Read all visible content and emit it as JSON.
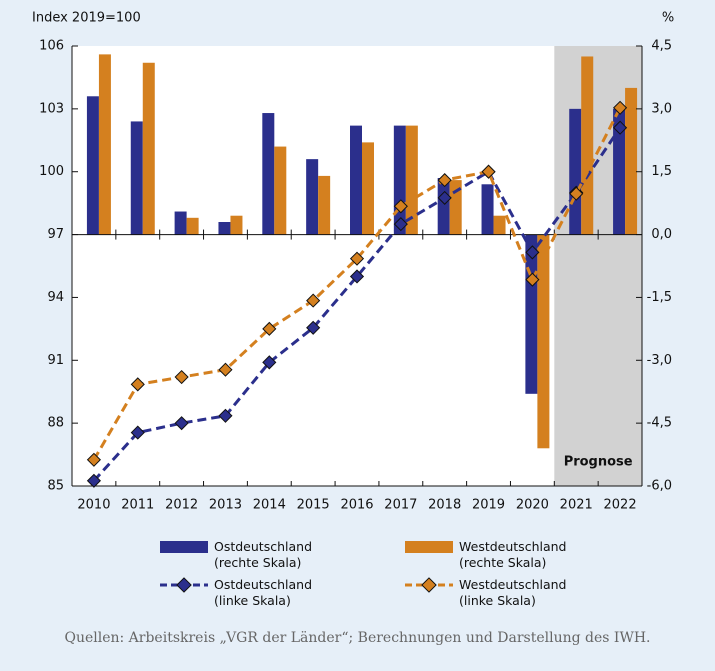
{
  "chart_data": {
    "type": "bar",
    "y_label": "Index 2019=100",
    "y2_label": "%",
    "annotation": "Prognose",
    "source": "Quellen: Arbeitskreis „VGR der Länder“; Berechnungen und Darstellung des IWH.",
    "categories": [
      "2010",
      "2011",
      "2012",
      "2013",
      "2014",
      "2015",
      "2016",
      "2017",
      "2018",
      "2019",
      "2020",
      "2021",
      "2022"
    ],
    "forecast_categories": [
      "2021",
      "2022"
    ],
    "ylim": [
      85,
      106
    ],
    "yticks": [
      85,
      88,
      91,
      94,
      97,
      100,
      103,
      106
    ],
    "y2lim": [
      -6,
      4.5
    ],
    "y2ticks": [
      {
        "value": -6,
        "label": "-6,0"
      },
      {
        "value": -4.5,
        "label": "-4,5"
      },
      {
        "value": -3,
        "label": "-3,0"
      },
      {
        "value": -1.5,
        "label": "-1,5"
      },
      {
        "value": 0,
        "label": "0,0"
      },
      {
        "value": 1.5,
        "label": "1,5"
      },
      {
        "value": 3,
        "label": "3,0"
      },
      {
        "value": 4.5,
        "label": "4,5"
      }
    ],
    "series": [
      {
        "name": "Ostdeutschland (rechte Skala)",
        "type": "bar",
        "axis": "y2",
        "color": "#2b2f8c",
        "values": [
          3.3,
          2.7,
          0.55,
          0.3,
          2.9,
          1.8,
          2.6,
          2.6,
          1.35,
          1.2,
          -3.8,
          3.0,
          3.0
        ]
      },
      {
        "name": "Westdeutschland (rechte Skala)",
        "type": "bar",
        "axis": "y2",
        "color": "#d4801f",
        "values": [
          4.3,
          4.1,
          0.4,
          0.45,
          2.1,
          1.4,
          2.2,
          2.6,
          1.3,
          0.45,
          -5.1,
          4.25,
          3.5
        ]
      },
      {
        "name": "Ostdeutschland (linke Skala)",
        "type": "line",
        "axis": "y",
        "color": "#2b2f8c",
        "values": [
          85.25,
          87.55,
          88.0,
          88.35,
          90.9,
          92.55,
          95.0,
          97.5,
          98.75,
          100.0,
          96.15,
          99.0,
          102.1
        ]
      },
      {
        "name": "Westdeutschland (linke Skala)",
        "type": "line",
        "axis": "y",
        "color": "#d4801f",
        "values": [
          86.25,
          89.85,
          90.2,
          90.55,
          92.5,
          93.85,
          95.85,
          98.35,
          99.6,
          100.0,
          94.85,
          98.95,
          103.05
        ]
      }
    ]
  }
}
